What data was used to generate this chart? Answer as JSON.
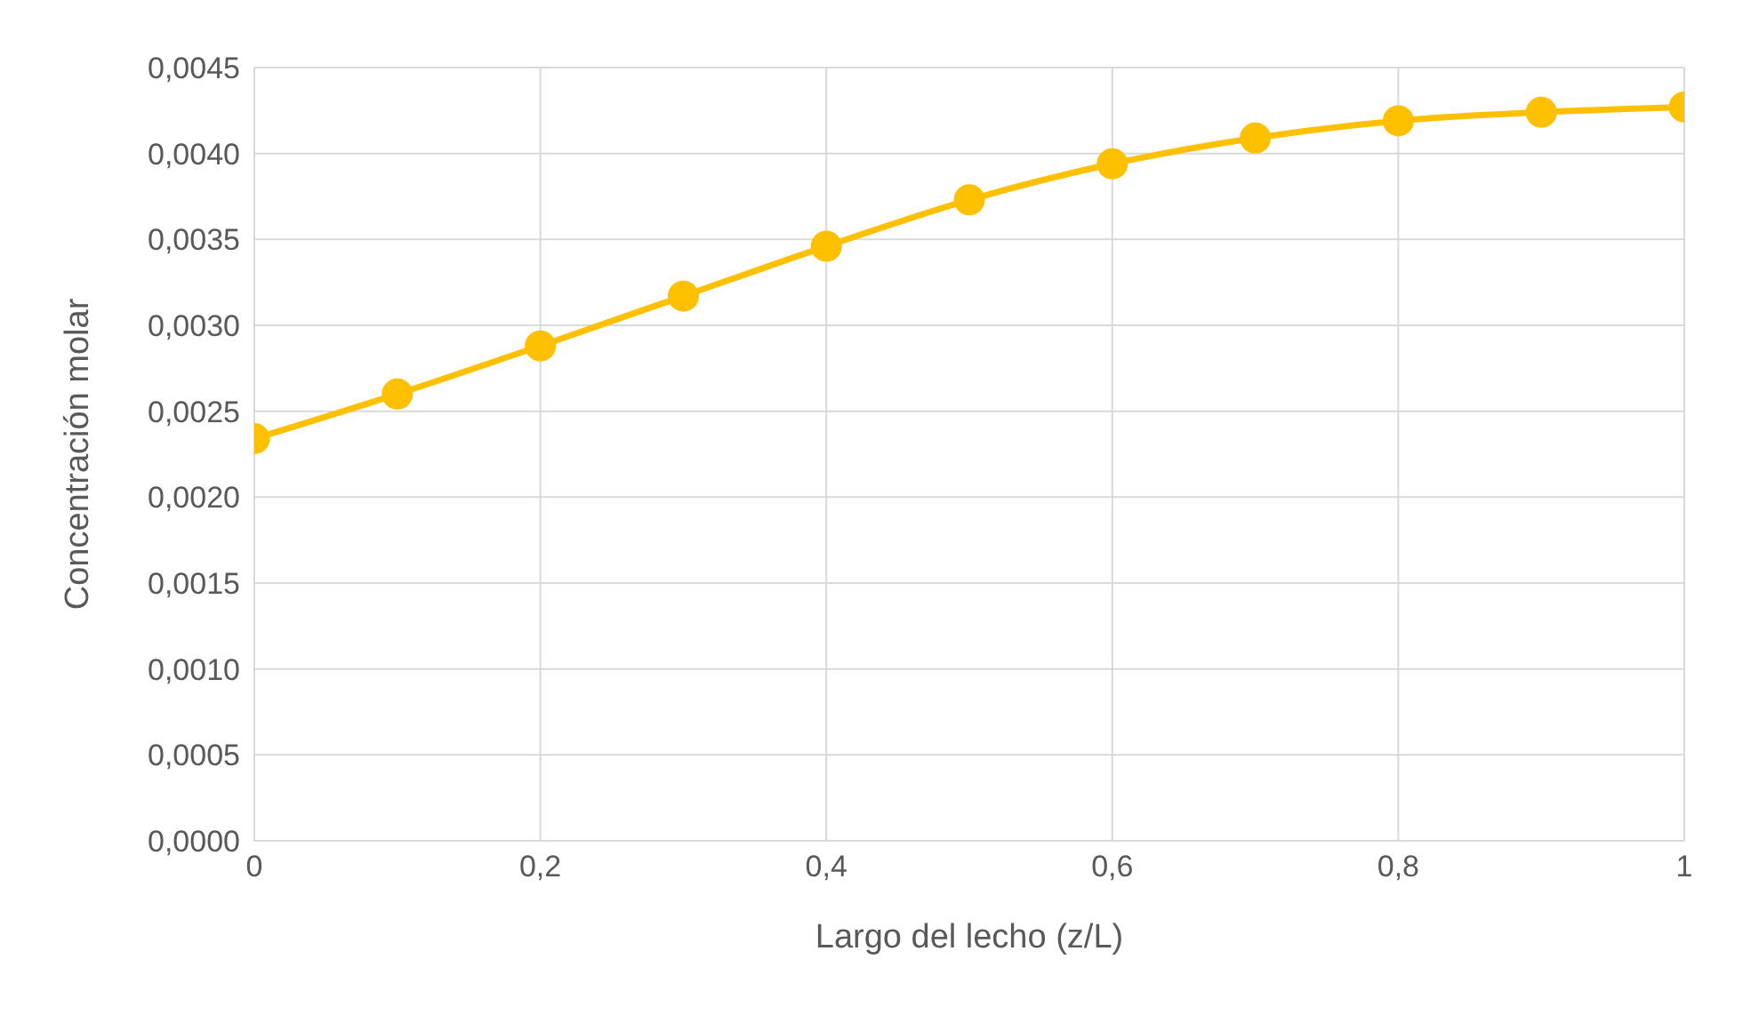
{
  "chart_data": {
    "type": "line",
    "xlabel": "Largo del lecho (z/L)",
    "ylabel": "Concentración molar",
    "x": [
      0,
      0.1,
      0.2,
      0.3,
      0.4,
      0.5,
      0.6,
      0.7,
      0.8,
      0.9,
      1
    ],
    "series": [
      {
        "color": "#ffc000",
        "values": [
          0.00234,
          0.0026,
          0.00288,
          0.00317,
          0.00346,
          0.00373,
          0.00394,
          0.00409,
          0.00419,
          0.00424,
          0.00427
        ]
      }
    ],
    "xlim": [
      0,
      1
    ],
    "xticks": [
      {
        "value": 0,
        "label": "0"
      },
      {
        "value": 0.2,
        "label": "0,2"
      },
      {
        "value": 0.4,
        "label": "0,4"
      },
      {
        "value": 0.6,
        "label": "0,6"
      },
      {
        "value": 0.8,
        "label": "0,8"
      },
      {
        "value": 1,
        "label": "1"
      }
    ],
    "ylim": [
      0,
      0.0045
    ],
    "yticks": [
      {
        "value": 0,
        "label": "0,0000"
      },
      {
        "value": 0.0005,
        "label": "0,0005"
      },
      {
        "value": 0.001,
        "label": "0,0010"
      },
      {
        "value": 0.0015,
        "label": "0,0015"
      },
      {
        "value": 0.002,
        "label": "0,0020"
      },
      {
        "value": 0.0025,
        "label": "0,0025"
      },
      {
        "value": 0.003,
        "label": "0,0030"
      },
      {
        "value": 0.0035,
        "label": "0,0035"
      },
      {
        "value": 0.004,
        "label": "0,0040"
      },
      {
        "value": 0.0045,
        "label": "0,0045"
      }
    ],
    "grid": true,
    "marker": "circle",
    "line_style": "solid",
    "legend": false
  }
}
